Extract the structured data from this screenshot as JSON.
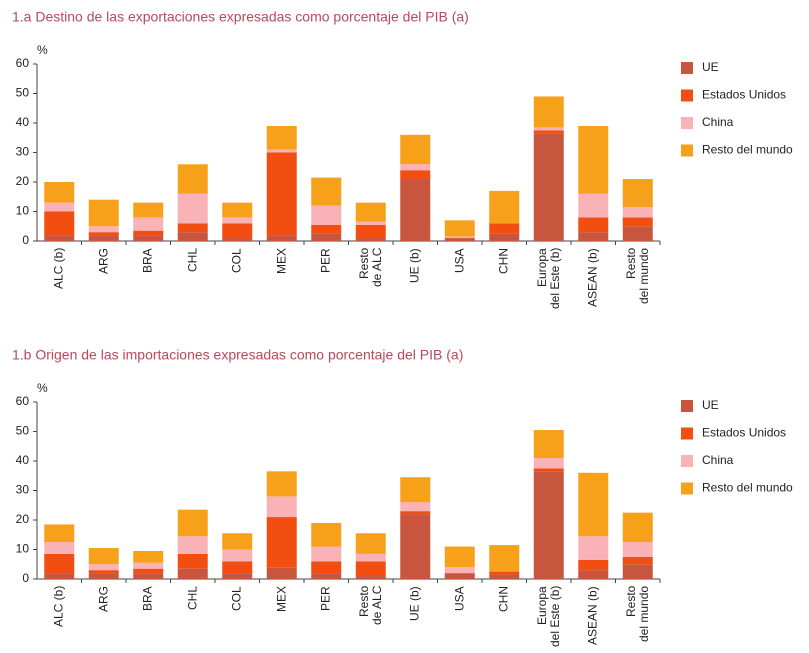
{
  "chart_data": [
    {
      "type": "bar",
      "stacked": true,
      "title": "1.a  Destino de las exportaciones expresadas como porcentaje del PIB (a)",
      "y_label": "%",
      "categories": [
        "ALC (b)",
        "ARG",
        "BRA",
        "CHL",
        "COL",
        "MEX",
        "PER",
        "Resto\nde ALC",
        "UE (b)",
        "USA",
        "CHN",
        "Europa\ndel Este (b)",
        "ASEAN (b)",
        "Resto\ndel mundo"
      ],
      "series": [
        {
          "name": "UE",
          "color": "#c8553d",
          "values": [
            2,
            2,
            2,
            3,
            1,
            2,
            2.5,
            1,
            21,
            1,
            2.5,
            36.5,
            3,
            5
          ]
        },
        {
          "name": "Estados Unidos",
          "color": "#f24e12",
          "values": [
            8,
            1,
            1.5,
            3,
            5,
            28,
            3,
            4.5,
            3,
            0,
            3.5,
            1,
            5,
            3
          ]
        },
        {
          "name": "China",
          "color": "#f9b3b6",
          "values": [
            3,
            2,
            4.5,
            10,
            2,
            1,
            6.5,
            1,
            2,
            0.5,
            0,
            1,
            8,
            3.5
          ]
        },
        {
          "name": "Resto del mundo",
          "color": "#f7a11a",
          "values": [
            7,
            9,
            5,
            10,
            5,
            8,
            9.5,
            6.5,
            10,
            5.5,
            11,
            10.5,
            23,
            9.5
          ]
        }
      ],
      "ylim": [
        0,
        60
      ],
      "yticks": [
        0,
        10,
        20,
        30,
        40,
        50,
        60
      ],
      "grid": false,
      "legend": "right"
    },
    {
      "type": "bar",
      "stacked": true,
      "title": "1.b  Origen de las importaciones expresadas como porcentaje del PIB (a)",
      "y_label": "%",
      "categories": [
        "ALC (b)",
        "ARG",
        "BRA",
        "CHL",
        "COL",
        "MEX",
        "PER",
        "Resto\nde ALC",
        "UE (b)",
        "USA",
        "CHN",
        "Europa\ndel Este (b)",
        "ASEAN (b)",
        "Resto\ndel mundo"
      ],
      "series": [
        {
          "name": "UE",
          "color": "#c8553d",
          "values": [
            2,
            2,
            2,
            3.5,
            2,
            4,
            2,
            1,
            22,
            2,
            1.5,
            36.5,
            3,
            5
          ]
        },
        {
          "name": "Estados Unidos",
          "color": "#f24e12",
          "values": [
            6.5,
            1,
            1.5,
            5,
            4,
            17,
            4,
            5,
            1,
            0,
            1,
            1,
            3.5,
            2.5
          ]
        },
        {
          "name": "China",
          "color": "#f9b3b6",
          "values": [
            4,
            2,
            2,
            6,
            4,
            7,
            5,
            2.5,
            3,
            2,
            0,
            3.5,
            8,
            5
          ]
        },
        {
          "name": "Resto del mundo",
          "color": "#f7a11a",
          "values": [
            6,
            5.5,
            4,
            9,
            5.5,
            8.5,
            8,
            7,
            8.5,
            7,
            9,
            9.5,
            21.5,
            10
          ]
        }
      ],
      "ylim": [
        0,
        60
      ],
      "yticks": [
        0,
        10,
        20,
        30,
        40,
        50,
        60
      ],
      "grid": false,
      "legend": "right"
    }
  ]
}
